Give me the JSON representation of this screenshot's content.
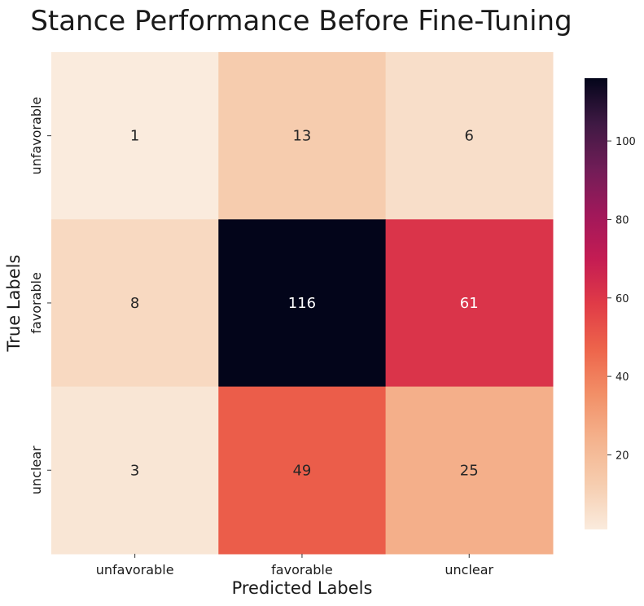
{
  "chart_data": {
    "type": "heatmap",
    "title": "Stance Performance Before Fine-Tuning",
    "xlabel": "Predicted Labels",
    "ylabel": "True Labels",
    "x_categories": [
      "unfavorable",
      "favorable",
      "unclear"
    ],
    "y_categories": [
      "unfavorable",
      "favorable",
      "unclear"
    ],
    "values": [
      [
        1,
        13,
        6
      ],
      [
        8,
        116,
        61
      ],
      [
        3,
        49,
        25
      ]
    ],
    "colormap": "rocket_r",
    "colorbar": {
      "min": 1,
      "max": 116,
      "ticks": [
        20,
        40,
        60,
        80,
        100
      ]
    },
    "grid": false
  }
}
